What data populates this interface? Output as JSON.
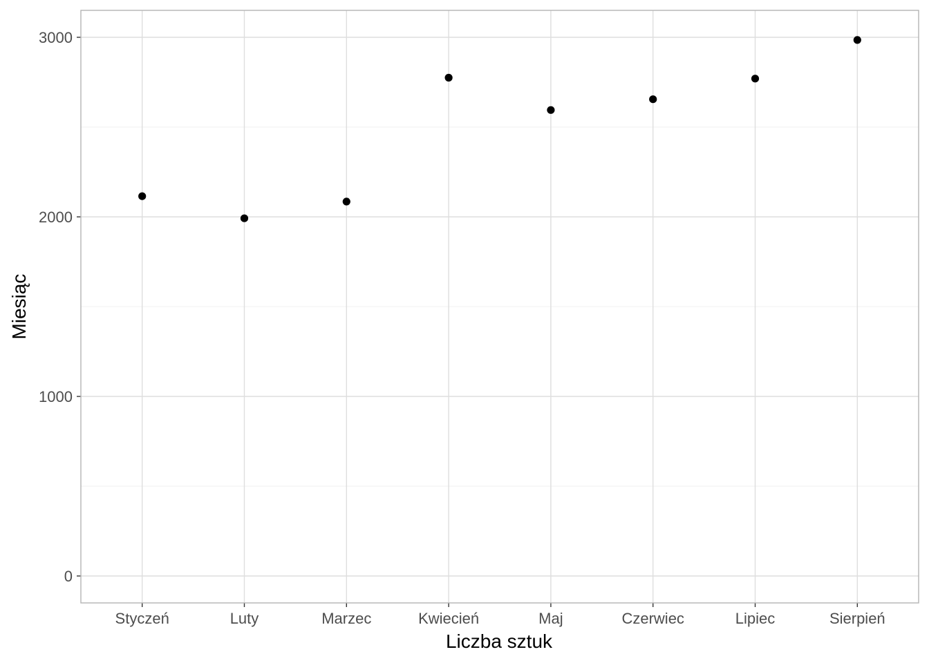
{
  "chart_data": {
    "type": "scatter",
    "title": "",
    "xlabel": "Liczba sztuk",
    "ylabel": "Miesiąc",
    "categories": [
      "Styczeń",
      "Luty",
      "Marzec",
      "Kwiecień",
      "Maj",
      "Czerwiec",
      "Lipiec",
      "Sierpień"
    ],
    "values": [
      2115,
      1992,
      2085,
      2775,
      2595,
      2655,
      2770,
      2985
    ],
    "ylim": [
      -150,
      3150
    ],
    "y_ticks": [
      0,
      1000,
      2000,
      3000
    ],
    "y_tick_labels": [
      "0",
      "1000",
      "2000",
      "3000"
    ],
    "y_minor_ticks": [
      500,
      1500,
      2500
    ],
    "grid": true,
    "legend": "none",
    "colors": {
      "point": "#000000",
      "grid_major": "#dedede",
      "grid_minor": "#f0f0f0",
      "panel_border": "#b3b3b3",
      "tick_label": "#4d4d4d",
      "axis_title": "#000000"
    }
  }
}
